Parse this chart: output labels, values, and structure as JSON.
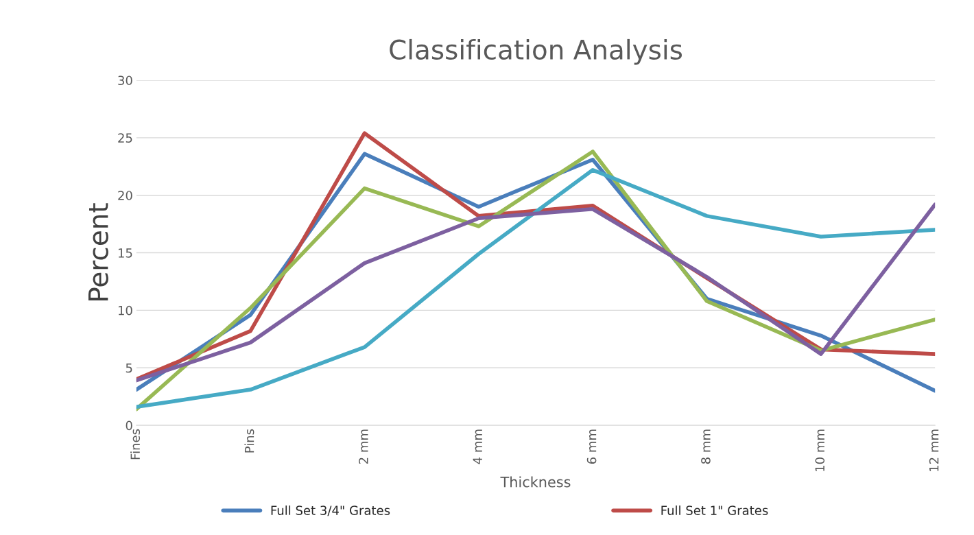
{
  "chart_data": {
    "type": "line",
    "title": "Classification Analysis",
    "xlabel": "Thickness",
    "ylabel": "Percent",
    "categories": [
      "Fines",
      "Pins",
      "2 mm",
      "4 mm",
      "6 mm",
      "8 mm",
      "10 mm",
      "12 mm"
    ],
    "series": [
      {
        "name": "Full Set 3/4\" Grates",
        "color": "#4a7ebb",
        "values": [
          3.1,
          9.6,
          23.6,
          19.0,
          23.1,
          11.0,
          7.8,
          3.0
        ]
      },
      {
        "name": "Full Set 1\" Grates",
        "color": "#be4b48",
        "values": [
          4.0,
          8.2,
          25.4,
          18.2,
          19.1,
          12.8,
          6.6,
          6.2
        ]
      },
      {
        "color": "#98b954",
        "values": [
          1.4,
          10.2,
          20.6,
          17.3,
          23.8,
          10.8,
          6.5,
          9.2
        ]
      },
      {
        "color": "#46aac5",
        "values": [
          1.6,
          3.1,
          6.8,
          14.9,
          22.2,
          18.2,
          16.4,
          17.0
        ]
      },
      {
        "color": "#7d60a0",
        "values": [
          3.9,
          7.2,
          14.1,
          18.0,
          18.8,
          12.9,
          6.2,
          19.2
        ]
      }
    ],
    "ylim": [
      0,
      30
    ],
    "yticks": [
      0,
      5,
      10,
      15,
      20,
      25,
      30
    ],
    "grid": "y",
    "legend": "bottom",
    "marker": "none",
    "line_style": "solid"
  }
}
